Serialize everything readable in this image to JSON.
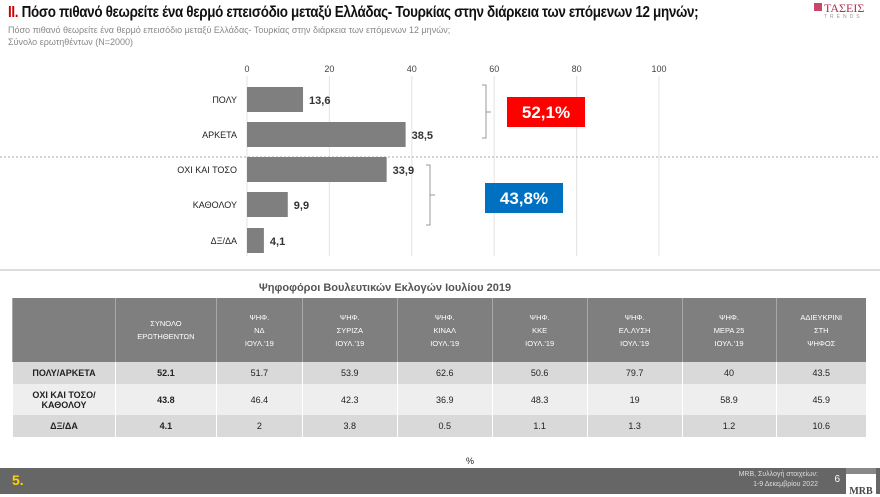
{
  "header": {
    "number": "II.",
    "title": " Πόσο πιθανό θεωρείτε ένα θερμό επεισόδιο μεταξύ Ελλάδας- Τουρκίας στην διάρκεια των επόμενων 12 μηνών;",
    "subtitle1": "Πόσο πιθανό θεωρείτε ένα θερμό επεισόδιο μεταξύ Ελλάδας- Τουρκίας στην διάρκεια των επόμενων 12 μηνών;",
    "subtitle2": "Σύνολο ερωτηθέντων (N=2000)",
    "logo_text": "ΤΑΣΕΙΣ",
    "logo_sub": "TRENDS"
  },
  "chart_data": {
    "type": "bar",
    "orientation": "horizontal",
    "categories": [
      "ΠΟΛΥ",
      "ΑΡΚΕΤΑ",
      "ΟΧΙ ΚΑΙ ΤΟΣΟ",
      "ΚΑΘΟΛΟΥ",
      "ΔΞ/ΔΑ"
    ],
    "values": [
      13.6,
      38.5,
      33.9,
      9.9,
      4.1
    ],
    "value_labels": [
      "13,6",
      "38,5",
      "33,9",
      "9,9",
      "4,1"
    ],
    "xlim": [
      0,
      100
    ],
    "xticks": [
      0,
      20,
      40,
      60,
      80,
      100
    ],
    "grid": true,
    "bar_color": "#7f7f7f",
    "annotations": [
      {
        "text": "52,1%",
        "color": "#ff0000"
      },
      {
        "text": "43,8%",
        "color": "#0070c0"
      }
    ]
  },
  "table": {
    "title": "Ψηφοφόροι Βουλευτικών Εκλογών Ιουλίου 2019",
    "headers": [
      [
        ""
      ],
      [
        "ΣΥΝΟΛΟ",
        "ΕΡΩΤΗΘΕΝΤΩΝ"
      ],
      [
        "ΨΗΦ.",
        "ΝΔ",
        "ΙΟΥΛ.'19"
      ],
      [
        "ΨΗΦ.",
        "ΣΥΡΙΖΑ",
        "ΙΟΥΛ.'19"
      ],
      [
        "ΨΗΦ.",
        "ΚΙΝΑΛ",
        "ΙΟΥΛ.'19"
      ],
      [
        "ΨΗΦ.",
        "ΚΚΕ",
        "ΙΟΥΛ.'19"
      ],
      [
        "ΨΗΦ.",
        "ΕΛ.ΛΥΣΗ",
        "ΙΟΥΛ.'19"
      ],
      [
        "ΨΗΦ.",
        "ΜΕΡΑ 25",
        "ΙΟΥΛ.'19"
      ],
      [
        "ΑΔΙΕΥΚΡΙΝΙ",
        "ΣΤΗ",
        "ΨΗΦΟΣ"
      ]
    ],
    "rows": [
      [
        "ΠΟΛΥ/ΑΡΚΕΤΑ",
        "52.1",
        "51.7",
        "53.9",
        "62.6",
        "50.6",
        "79.7",
        "40",
        "43.5"
      ],
      [
        "ΟΧΙ ΚΑΙ ΤΟΣΟ/ΚΑΘΟΛΟΥ",
        "43.8",
        "46.4",
        "42.3",
        "36.9",
        "48.3",
        "19",
        "58.9",
        "45.9"
      ],
      [
        "ΔΞ/ΔΑ",
        "4.1",
        "2",
        "3.8",
        "0.5",
        "1.1",
        "1.3",
        "1.2",
        "10.6"
      ]
    ],
    "unit": "%"
  },
  "footer": {
    "page_label": "5.",
    "source1": "MRB, Συλλογή στοιχείων:",
    "source2": "1-9 Δεκεμβρίου 2022",
    "page_number": "6",
    "mrb_logo": "MRB"
  }
}
